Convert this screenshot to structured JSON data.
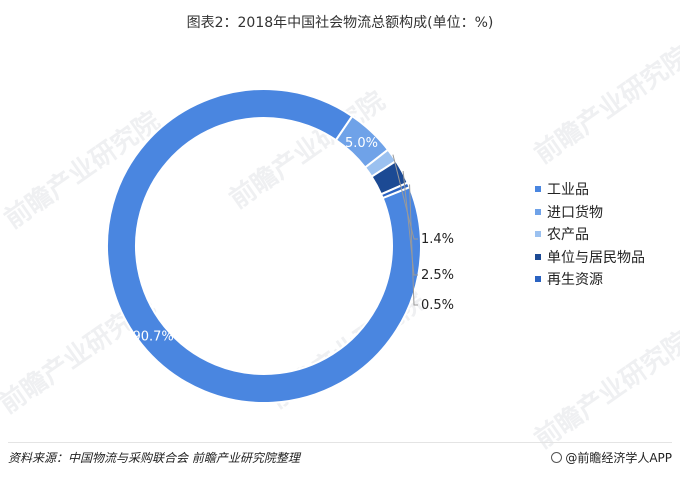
{
  "title": "图表2：2018年中国社会物流总额构成(单位：%)",
  "watermark_text": "前瞻产业研究院",
  "footer": {
    "source": "资料来源：中国物流与采购联合会 前瞻产业研究院整理",
    "brand": "@前瞻经济学人APP"
  },
  "colors": {
    "工业品": "#4a86e0",
    "进口货物": "#6fa2e8",
    "农产品": "#9bc1f0",
    "单位与居民物品": "#1c4a94",
    "再生资源": "#2b63c1"
  },
  "chart_data": {
    "type": "pie",
    "variant": "donut",
    "title": "图表2：2018年中国社会物流总额构成(单位：%)",
    "categories": [
      "工业品",
      "进口货物",
      "农产品",
      "单位与居民物品",
      "再生资源"
    ],
    "values": [
      90.7,
      5.0,
      1.4,
      2.5,
      0.5
    ],
    "labels": [
      "90.7%",
      "5.0%",
      "1.4%",
      "2.5%",
      "0.5%"
    ],
    "unit": "%",
    "legend": "right"
  }
}
